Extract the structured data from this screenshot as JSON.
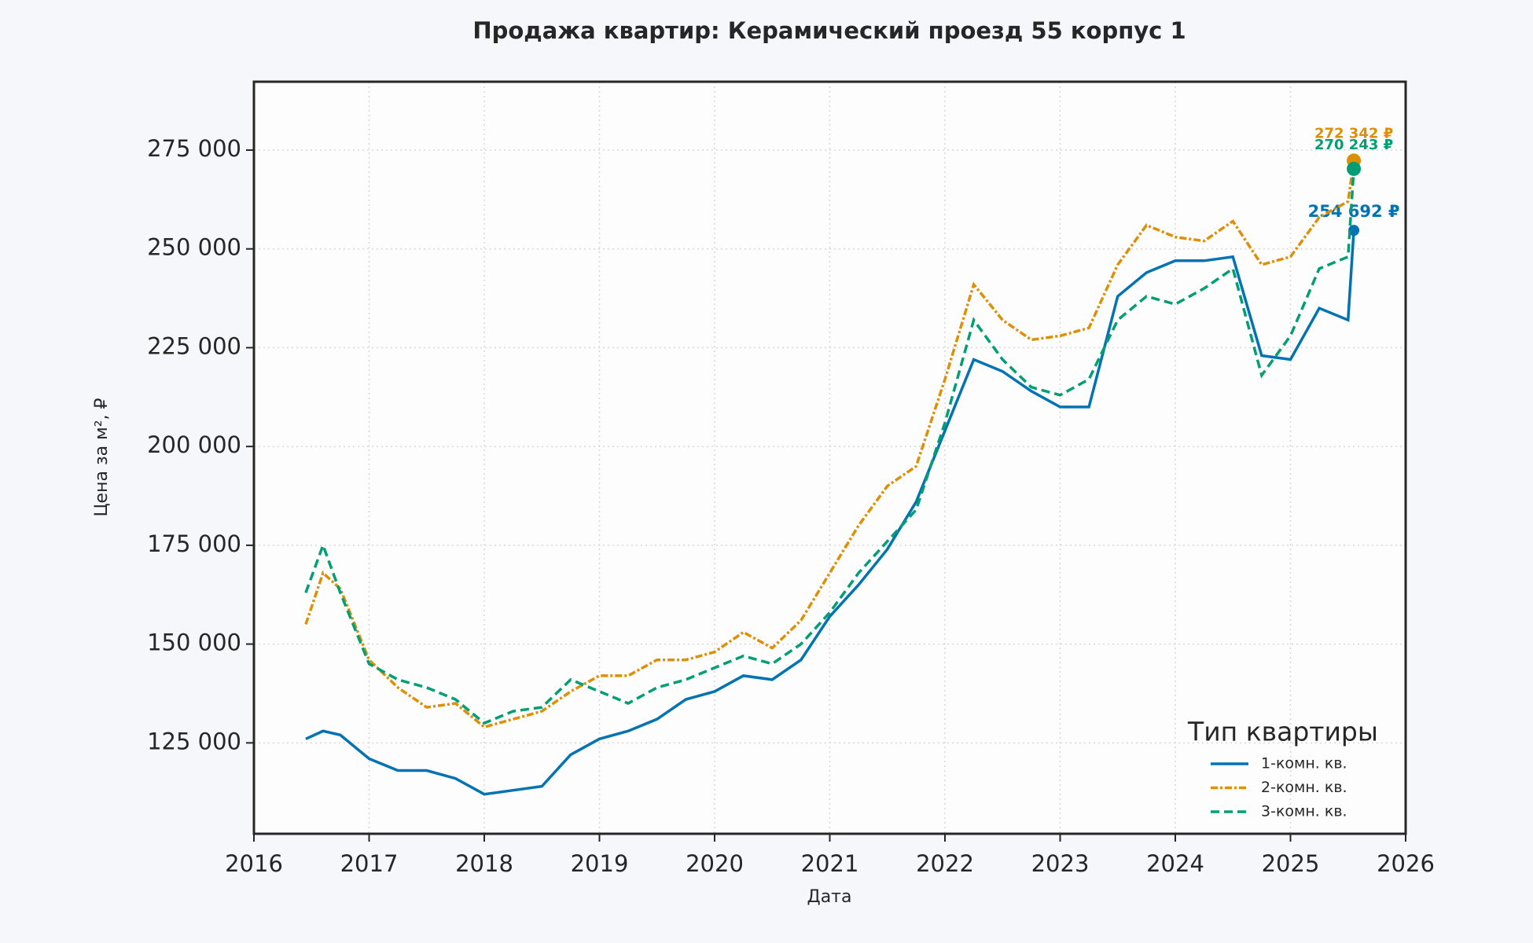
{
  "chart_data": {
    "type": "line",
    "title": "Продажа квартир: Керамический проезд 55 корпус 1",
    "x_label": "Дата",
    "y_label": "Цена за м², ₽",
    "x": [
      2016.45,
      2016.6,
      2016.75,
      2017.0,
      2017.25,
      2017.5,
      2017.75,
      2018.0,
      2018.25,
      2018.5,
      2018.75,
      2019.0,
      2019.25,
      2019.5,
      2019.75,
      2020.0,
      2020.25,
      2020.5,
      2020.75,
      2021.0,
      2021.25,
      2021.5,
      2021.75,
      2022.0,
      2022.25,
      2022.5,
      2022.75,
      2023.0,
      2023.25,
      2023.5,
      2023.75,
      2024.0,
      2024.25,
      2024.5,
      2024.75,
      2025.0,
      2025.25,
      2025.5,
      2025.55
    ],
    "series": [
      {
        "name": "1-комн. кв.",
        "color": "#0173b2",
        "dash": "none",
        "last_label": "254 692 ₽",
        "values": [
          126000,
          128000,
          127000,
          121000,
          118000,
          118000,
          116000,
          112000,
          113000,
          114000,
          122000,
          126000,
          128000,
          131000,
          136000,
          138000,
          142000,
          141000,
          146000,
          157000,
          165000,
          174000,
          186000,
          204000,
          222000,
          219000,
          214000,
          210000,
          210000,
          238000,
          244000,
          247000,
          247000,
          248000,
          223000,
          222000,
          235000,
          232000,
          254692
        ]
      },
      {
        "name": "2-комн. кв.",
        "color": "#de8f05",
        "dash": "9,3,3,3",
        "last_label": "272 342 ₽",
        "values": [
          155000,
          168000,
          164000,
          146000,
          139000,
          134000,
          135000,
          129000,
          131000,
          133000,
          138000,
          142000,
          142000,
          146000,
          146000,
          148000,
          153000,
          149000,
          156000,
          168000,
          180000,
          190000,
          195000,
          217000,
          241000,
          232000,
          227000,
          228000,
          230000,
          246000,
          256000,
          253000,
          252000,
          257000,
          246000,
          248000,
          258000,
          262000,
          272342
        ]
      },
      {
        "name": "3-комн. кв.",
        "color": "#029e73",
        "dash": "11,6",
        "last_label": "270 243 ₽",
        "values": [
          163000,
          175000,
          163000,
          145000,
          141000,
          139000,
          136000,
          130000,
          133000,
          134000,
          141000,
          138000,
          135000,
          139000,
          141000,
          144000,
          147000,
          145000,
          150000,
          158000,
          168000,
          176000,
          184000,
          206000,
          232000,
          222000,
          215000,
          213000,
          217000,
          232000,
          238000,
          236000,
          240000,
          245000,
          218000,
          228000,
          245000,
          248000,
          270243
        ]
      }
    ],
    "xlim": [
      2016,
      2026
    ],
    "xticks": [
      2016,
      2017,
      2018,
      2019,
      2020,
      2021,
      2022,
      2023,
      2024,
      2025,
      2026
    ],
    "ylim": [
      102000,
      292300
    ],
    "yticks": [
      {
        "value": 125000,
        "label": "125 000"
      },
      {
        "value": 150000,
        "label": "150 000"
      },
      {
        "value": 175000,
        "label": "175 000"
      },
      {
        "value": 200000,
        "label": "200 000"
      },
      {
        "value": 225000,
        "label": "225 000"
      },
      {
        "value": 250000,
        "label": "250 000"
      },
      {
        "value": 275000,
        "label": "275 000"
      }
    ],
    "grid": true,
    "legend_title": "Тип квартиры",
    "legend_position": "lower right"
  }
}
